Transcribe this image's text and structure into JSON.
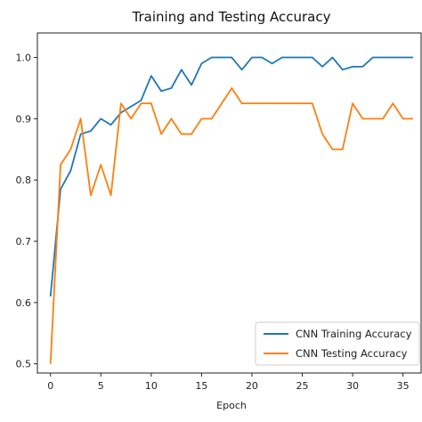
{
  "chart_data": {
    "type": "line",
    "title": "Training and Testing Accuracy",
    "xlabel": "Epoch",
    "ylabel": "",
    "xlim": [
      -1.3,
      36.8
    ],
    "ylim": [
      0.485,
      1.04
    ],
    "xticks": [
      0,
      5,
      10,
      15,
      20,
      25,
      30,
      35
    ],
    "yticks": [
      0.5,
      0.6,
      0.7,
      0.8,
      0.9,
      1.0
    ],
    "ytick_labels": [
      "0.5",
      "0.6",
      "0.7",
      "0.8",
      "0.9",
      "1.0"
    ],
    "grid": false,
    "legend_position": "lower-right",
    "x": [
      0,
      1,
      2,
      3,
      4,
      5,
      6,
      7,
      8,
      9,
      10,
      11,
      12,
      13,
      14,
      15,
      16,
      17,
      18,
      19,
      20,
      21,
      22,
      23,
      24,
      25,
      26,
      27,
      28,
      29,
      30,
      31,
      32,
      33,
      34,
      35,
      36
    ],
    "series": [
      {
        "name": "CNN Training Accuracy",
        "color": "#1f77b4",
        "values": [
          0.61,
          0.785,
          0.815,
          0.875,
          0.88,
          0.9,
          0.89,
          0.91,
          0.92,
          0.93,
          0.97,
          0.945,
          0.95,
          0.98,
          0.955,
          0.99,
          1.0,
          1.0,
          1.0,
          0.98,
          1.0,
          1.0,
          0.99,
          1.0,
          1.0,
          1.0,
          1.0,
          0.985,
          1.0,
          0.98,
          0.985,
          0.985,
          1.0,
          1.0,
          1.0,
          1.0,
          1.0
        ]
      },
      {
        "name": "CNN Testing Accuracy",
        "color": "#ff7f0e",
        "values": [
          0.5,
          0.825,
          0.85,
          0.9,
          0.775,
          0.825,
          0.775,
          0.925,
          0.9,
          0.925,
          0.925,
          0.875,
          0.9,
          0.875,
          0.875,
          0.9,
          0.9,
          0.925,
          0.95,
          0.925,
          0.925,
          0.925,
          0.925,
          0.925,
          0.925,
          0.925,
          0.925,
          0.875,
          0.85,
          0.85,
          0.925,
          0.9,
          0.9,
          0.9,
          0.925,
          0.9,
          0.9
        ]
      }
    ]
  }
}
